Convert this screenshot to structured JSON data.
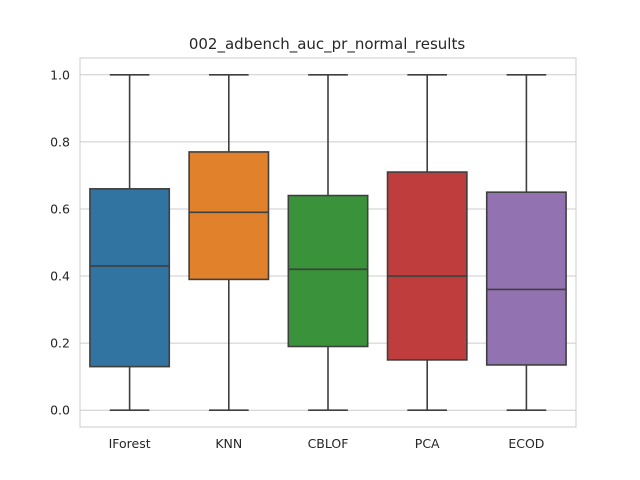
{
  "chart_data": {
    "type": "box",
    "title": "002_adbench_auc_pr_normal_results",
    "xlabel": "",
    "ylabel": "",
    "ylim": [
      -0.05,
      1.05
    ],
    "yticks": [
      "0.0",
      "0.2",
      "0.4",
      "0.6",
      "0.8",
      "1.0"
    ],
    "grid": true,
    "categories": [
      "IForest",
      "KNN",
      "CBLOF",
      "PCA",
      "ECOD"
    ],
    "boxes": [
      {
        "label": "IForest",
        "min": 0.0,
        "q1": 0.13,
        "median": 0.43,
        "q3": 0.66,
        "max": 1.0,
        "color": "#3274a1"
      },
      {
        "label": "KNN",
        "min": 0.0,
        "q1": 0.39,
        "median": 0.59,
        "q3": 0.77,
        "max": 1.0,
        "color": "#e1812c"
      },
      {
        "label": "CBLOF",
        "min": 0.0,
        "q1": 0.19,
        "median": 0.42,
        "q3": 0.64,
        "max": 1.0,
        "color": "#3a923a"
      },
      {
        "label": "PCA",
        "min": 0.0,
        "q1": 0.15,
        "median": 0.4,
        "q3": 0.71,
        "max": 1.0,
        "color": "#c03d3e"
      },
      {
        "label": "ECOD",
        "min": 0.0,
        "q1": 0.135,
        "median": 0.36,
        "q3": 0.65,
        "max": 1.0,
        "color": "#9372b2"
      }
    ]
  }
}
